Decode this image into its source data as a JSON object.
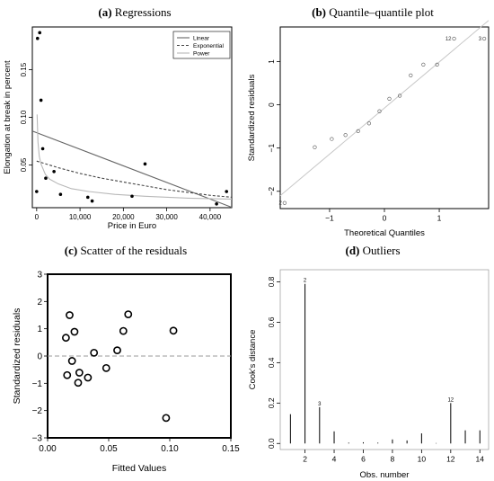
{
  "chart_data": [
    {
      "panel_label": "(a)",
      "title": "Regressions",
      "type": "scatter",
      "xlabel": "Price in Euro",
      "ylabel": "Elongation at break in percent",
      "xlim": [
        -1000,
        45000
      ],
      "ylim": [
        0.005,
        0.195
      ],
      "xticks": [
        0,
        10000,
        20000,
        30000,
        40000
      ],
      "xtick_labels": [
        "0",
        "10,000",
        "20,000",
        "30,000",
        "40,000"
      ],
      "yticks": [
        0.05,
        0.1,
        0.15
      ],
      "ytick_labels": [
        "0.05",
        "0.10",
        "0.15"
      ],
      "legend_position": "top-right",
      "points": [
        {
          "x": 0,
          "y": 0.022
        },
        {
          "x": 200,
          "y": 0.183
        },
        {
          "x": 700,
          "y": 0.189
        },
        {
          "x": 1000,
          "y": 0.118
        },
        {
          "x": 1400,
          "y": 0.067
        },
        {
          "x": 2100,
          "y": 0.036
        },
        {
          "x": 4000,
          "y": 0.043
        },
        {
          "x": 5500,
          "y": 0.019
        },
        {
          "x": 11800,
          "y": 0.016
        },
        {
          "x": 12800,
          "y": 0.012
        },
        {
          "x": 22000,
          "y": 0.017
        },
        {
          "x": 25000,
          "y": 0.051
        },
        {
          "x": 41500,
          "y": 0.009
        },
        {
          "x": 43800,
          "y": 0.022
        }
      ],
      "series": [
        {
          "name": "Linear",
          "style": "solid",
          "color": "#666666",
          "x": [
            -1000,
            45000
          ],
          "y": [
            0.0856,
            0.0054
          ]
        },
        {
          "name": "Exponential",
          "style": "dashed",
          "color": "#444444",
          "x": [
            0,
            5000,
            10000,
            15000,
            20000,
            25000,
            30000,
            35000,
            40000,
            45000
          ],
          "y": [
            0.054,
            0.047,
            0.041,
            0.036,
            0.032,
            0.028,
            0.024,
            0.021,
            0.018,
            0.016
          ]
        },
        {
          "name": "Power",
          "style": "solid",
          "color": "#b8b8b8",
          "x": [
            100,
            300,
            600,
            1000,
            2000,
            3000,
            5000,
            8000,
            12000,
            18000,
            25000,
            35000,
            45000
          ],
          "y": [
            0.103,
            0.074,
            0.059,
            0.051,
            0.04,
            0.035,
            0.03,
            0.025,
            0.022,
            0.019,
            0.017,
            0.015,
            0.014
          ]
        }
      ]
    },
    {
      "panel_label": "(b)",
      "title": "Quantile–quantile plot",
      "type": "scatter",
      "xlabel": "Theoretical Quantiles",
      "ylabel": "Standardized residuals",
      "xlim": [
        -1.9,
        1.9
      ],
      "ylim": [
        -2.4,
        1.8
      ],
      "xticks": [
        -1,
        0,
        1
      ],
      "xtick_labels": [
        "−1",
        "0",
        "1"
      ],
      "yticks": [
        -2,
        -1,
        0,
        1
      ],
      "ytick_labels": [
        "−2",
        "−1",
        "0",
        "1"
      ],
      "reference_line": {
        "x": [
          -1.9,
          1.9
        ],
        "y": [
          -2.1,
          1.95
        ],
        "color": "#c8c8c8"
      },
      "points": [
        {
          "x": -1.82,
          "y": -2.27,
          "label": "2"
        },
        {
          "x": -1.27,
          "y": -0.98
        },
        {
          "x": -0.96,
          "y": -0.79
        },
        {
          "x": -0.71,
          "y": -0.7
        },
        {
          "x": -0.48,
          "y": -0.61
        },
        {
          "x": -0.28,
          "y": -0.43
        },
        {
          "x": -0.09,
          "y": -0.15
        },
        {
          "x": 0.09,
          "y": 0.14
        },
        {
          "x": 0.28,
          "y": 0.21
        },
        {
          "x": 0.48,
          "y": 0.68
        },
        {
          "x": 0.71,
          "y": 0.93
        },
        {
          "x": 0.96,
          "y": 0.93
        },
        {
          "x": 1.27,
          "y": 1.53,
          "label": "12"
        },
        {
          "x": 1.82,
          "y": 1.53,
          "label": "3"
        }
      ]
    },
    {
      "panel_label": "(c)",
      "title": "Scatter of the residuals",
      "type": "scatter",
      "xlabel": "Fitted Values",
      "ylabel": "Standardized residuals",
      "xlim": [
        0,
        0.15
      ],
      "ylim": [
        -3,
        3
      ],
      "xticks": [
        0,
        0.05,
        0.1,
        0.15
      ],
      "xtick_labels": [
        "0.00",
        "0.05",
        "0.10",
        "0.15"
      ],
      "yticks": [
        -3,
        -2,
        -1,
        0,
        1,
        2,
        3
      ],
      "ytick_labels": [
        "−3",
        "−2",
        "−1",
        "0",
        "1",
        "2",
        "3"
      ],
      "reference_line": {
        "y": 0,
        "style": "dashed",
        "color": "#999999"
      },
      "points": [
        {
          "x": 0.015,
          "y": 0.67
        },
        {
          "x": 0.016,
          "y": -0.7
        },
        {
          "x": 0.018,
          "y": 1.5
        },
        {
          "x": 0.02,
          "y": -0.18
        },
        {
          "x": 0.022,
          "y": 0.89
        },
        {
          "x": 0.025,
          "y": -0.98
        },
        {
          "x": 0.026,
          "y": -0.61
        },
        {
          "x": 0.033,
          "y": -0.79
        },
        {
          "x": 0.038,
          "y": 0.12
        },
        {
          "x": 0.048,
          "y": -0.44
        },
        {
          "x": 0.057,
          "y": 0.21
        },
        {
          "x": 0.062,
          "y": 0.92
        },
        {
          "x": 0.066,
          "y": 1.53
        },
        {
          "x": 0.097,
          "y": -2.27
        },
        {
          "x": 0.103,
          "y": 0.93
        }
      ]
    },
    {
      "panel_label": "(d)",
      "title": "Outliers",
      "type": "bar",
      "xlabel": "Obs. number",
      "ylabel": "Cook's distance",
      "xlim": [
        0.3,
        14.6
      ],
      "ylim": [
        -0.03,
        0.86
      ],
      "xticks": [
        2,
        4,
        6,
        8,
        10,
        12,
        14
      ],
      "xtick_labels": [
        "2",
        "4",
        "6",
        "8",
        "10",
        "12",
        "14"
      ],
      "yticks": [
        0,
        0.2,
        0.4,
        0.6,
        0.8
      ],
      "ytick_labels": [
        "0.0",
        "0.2",
        "0.4",
        "0.6",
        "0.8"
      ],
      "categories": [
        1,
        2,
        3,
        4,
        5,
        6,
        7,
        8,
        9,
        10,
        11,
        12,
        13,
        14
      ],
      "values": [
        0.145,
        0.79,
        0.18,
        0.06,
        0.004,
        0.006,
        0.004,
        0.02,
        0.015,
        0.05,
        0.002,
        0.2,
        0.065,
        0.065
      ],
      "bar_labels": {
        "2": "2",
        "3": "3",
        "12": "12"
      }
    }
  ]
}
